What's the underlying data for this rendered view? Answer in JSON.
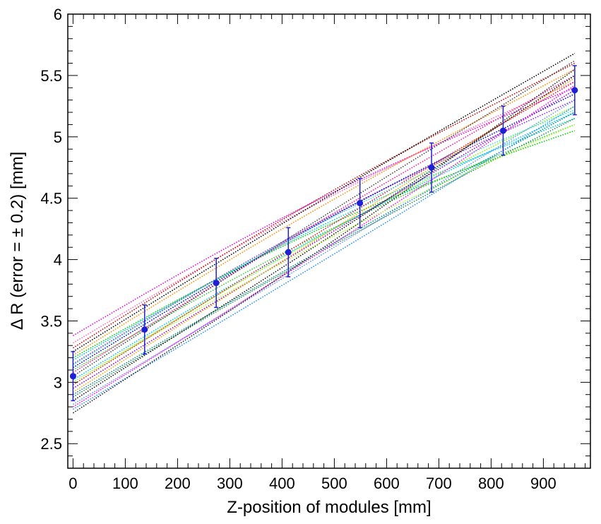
{
  "chart_data": {
    "type": "scatter",
    "title": "",
    "xlabel": "Z-position of modules [mm]",
    "ylabel": "Δ R (error = ± 0.2) [mm]",
    "xlim": [
      -10,
      990
    ],
    "ylim": [
      2.3,
      6.0
    ],
    "xticks": [
      0,
      100,
      200,
      300,
      400,
      500,
      600,
      700,
      800,
      900
    ],
    "xtick_labels": [
      "0",
      "100",
      "200",
      "300",
      "400",
      "500",
      "600",
      "700",
      "800",
      "900"
    ],
    "yticks": [
      2.5,
      3,
      3.5,
      4,
      4.5,
      5,
      5.5,
      6
    ],
    "ytick_labels": [
      "2.5",
      "3",
      "3.5",
      "4",
      "4.5",
      "5",
      "5.5",
      "6"
    ],
    "grid": false,
    "points": {
      "name": "",
      "color": "#1f1fd6",
      "x": [
        0,
        137,
        274,
        412,
        549,
        686,
        823,
        960
      ],
      "y": [
        3.05,
        3.43,
        3.81,
        4.06,
        4.46,
        4.75,
        5.05,
        5.38
      ],
      "yerr": 0.2
    },
    "fit_curves": [
      {
        "color": "#e600e6",
        "y0": 3.38,
        "y1": 5.4,
        "c": 0.12
      },
      {
        "color": "#ff69b4",
        "y0": 3.32,
        "y1": 5.45,
        "c": 0.1
      },
      {
        "color": "#cc0000",
        "y0": 3.28,
        "y1": 5.6,
        "c": 0.08
      },
      {
        "color": "#000000",
        "y0": 3.25,
        "y1": 5.68,
        "c": 0.03
      },
      {
        "color": "#ff8c00",
        "y0": 3.22,
        "y1": 5.55,
        "c": 0.06
      },
      {
        "color": "#00cc00",
        "y0": 3.2,
        "y1": 5.05,
        "c": 0.14
      },
      {
        "color": "#00cccc",
        "y0": 3.18,
        "y1": 5.15,
        "c": 0.12
      },
      {
        "color": "#8a2be2",
        "y0": 3.15,
        "y1": 5.3,
        "c": 0.1
      },
      {
        "color": "#0000cd",
        "y0": 3.12,
        "y1": 5.35,
        "c": 0.08
      },
      {
        "color": "#32cd32",
        "y0": 3.1,
        "y1": 5.1,
        "c": 0.12
      },
      {
        "color": "#ff1493",
        "y0": 3.08,
        "y1": 5.5,
        "c": 0.04
      },
      {
        "color": "#444444",
        "y0": 3.05,
        "y1": 5.62,
        "c": 0.02
      },
      {
        "color": "#00bfff",
        "y0": 3.02,
        "y1": 5.2,
        "c": 0.1
      },
      {
        "color": "#7cfc00",
        "y0": 3.0,
        "y1": 5.25,
        "c": 0.08
      },
      {
        "color": "#dc143c",
        "y0": 2.98,
        "y1": 5.45,
        "c": 0.03
      },
      {
        "color": "#9400d3",
        "y0": 2.95,
        "y1": 5.38,
        "c": 0.02
      },
      {
        "color": "#ffa500",
        "y0": 2.92,
        "y1": 5.48,
        "c": 0.0
      },
      {
        "color": "#008b8b",
        "y0": 2.9,
        "y1": 5.2,
        "c": 0.04
      },
      {
        "color": "#2e8b57",
        "y0": 2.88,
        "y1": 5.15,
        "c": 0.06
      },
      {
        "color": "#111111",
        "y0": 2.85,
        "y1": 5.5,
        "c": -0.02
      },
      {
        "color": "#6495ed",
        "y0": 2.82,
        "y1": 5.3,
        "c": -0.01
      },
      {
        "color": "#ff00ff",
        "y0": 2.8,
        "y1": 5.42,
        "c": -0.03
      },
      {
        "color": "#1e90ff",
        "y0": 2.78,
        "y1": 5.25,
        "c": -0.02
      },
      {
        "color": "#222222",
        "y0": 2.75,
        "y1": 5.55,
        "c": -0.05
      },
      {
        "color": "#adff2f",
        "y0": 3.0,
        "y1": 5.1,
        "c": 0.1
      },
      {
        "color": "#40e0d0",
        "y0": 3.14,
        "y1": 5.22,
        "c": 0.13
      }
    ]
  }
}
